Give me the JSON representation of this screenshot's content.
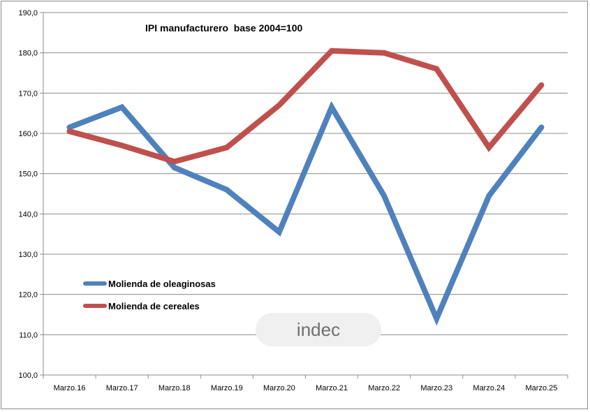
{
  "chart_data": {
    "type": "line",
    "title": "IPI manufacturero  base 2004=100",
    "xlabel": "",
    "ylabel": "",
    "categories": [
      "Marzo.16",
      "Marzo.17",
      "Marzo.18",
      "Marzo.19",
      "Marzo.20",
      "Marzo.21",
      "Marzo.22",
      "Marzo.23",
      "Marzo.24",
      "Marzo.25"
    ],
    "ylim": [
      100,
      190
    ],
    "yticks": [
      "100,0",
      "110,0",
      "120,0",
      "130,0",
      "140,0",
      "150,0",
      "160,0",
      "170,0",
      "180,0",
      "190,0"
    ],
    "grid": true,
    "legend_position": "bottom-left inside plot",
    "series": [
      {
        "name": "Molienda de oleaginosas",
        "color": "#4f81bd",
        "values": [
          161.5,
          166.5,
          151.5,
          146.0,
          135.5,
          166.5,
          144.5,
          114.0,
          144.5,
          161.5
        ]
      },
      {
        "name": "Molienda de cereales",
        "color": "#c0504d",
        "values": [
          160.5,
          157.0,
          153.0,
          156.5,
          167.0,
          180.5,
          180.0,
          176.0,
          156.5,
          172.0
        ]
      }
    ]
  },
  "watermark": {
    "text": "indec",
    "icon": "indec-logo"
  }
}
